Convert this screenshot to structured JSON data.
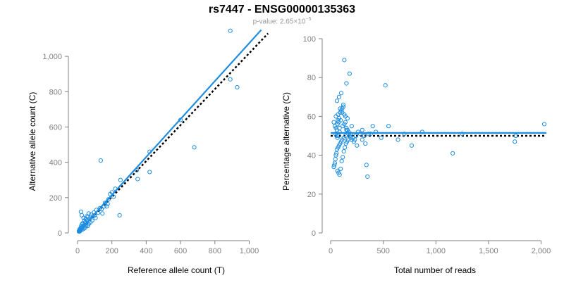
{
  "title": "rs7447 - ENSG00000135363",
  "subtitle": {
    "prefix": "p-value: 2.65×10",
    "exponent": "−5"
  },
  "colors": {
    "points": "#1f8de0",
    "fit": "#1f8de0",
    "reference": "#000000",
    "axis": "#808080"
  },
  "chart_data": [
    {
      "type": "scatter",
      "xlabel": "Reference allele count (T)",
      "ylabel": "Alternative allele count (C)",
      "xlim": [
        0,
        1150
      ],
      "ylim": [
        0,
        1100
      ],
      "xticks": [
        0,
        200,
        400,
        600,
        800,
        1000
      ],
      "xtick_labels": [
        "0",
        "200",
        "400",
        "600",
        "800",
        "1,000"
      ],
      "yticks": [
        0,
        200,
        400,
        600,
        800,
        1000
      ],
      "ytick_labels": [
        "0",
        "200",
        "400",
        "600",
        "800",
        "1,000"
      ],
      "fit_line": {
        "x": [
          0,
          1070
        ],
        "y": [
          0,
          1150
        ]
      },
      "reference_line": {
        "x": [
          0,
          1110
        ],
        "y": [
          0,
          1130
        ]
      },
      "points": [
        [
          890,
          1145
        ],
        [
          890,
          870
        ],
        [
          930,
          825
        ],
        [
          680,
          485
        ],
        [
          600,
          640
        ],
        [
          420,
          460
        ],
        [
          420,
          345
        ],
        [
          345,
          355
        ],
        [
          350,
          305
        ],
        [
          250,
          300
        ],
        [
          245,
          100
        ],
        [
          135,
          410
        ],
        [
          200,
          230
        ],
        [
          220,
          250
        ],
        [
          190,
          220
        ],
        [
          210,
          205
        ],
        [
          175,
          165
        ],
        [
          155,
          150
        ],
        [
          140,
          135
        ],
        [
          110,
          130
        ],
        [
          120,
          115
        ],
        [
          100,
          100
        ],
        [
          90,
          95
        ],
        [
          80,
          105
        ],
        [
          70,
          80
        ],
        [
          60,
          90
        ],
        [
          55,
          70
        ],
        [
          50,
          55
        ],
        [
          45,
          60
        ],
        [
          40,
          45
        ],
        [
          35,
          40
        ],
        [
          30,
          35
        ],
        [
          28,
          30
        ],
        [
          25,
          25
        ],
        [
          22,
          28
        ],
        [
          20,
          20
        ],
        [
          18,
          15
        ],
        [
          16,
          18
        ],
        [
          15,
          12
        ],
        [
          14,
          10
        ],
        [
          12,
          14
        ],
        [
          10,
          8
        ],
        [
          20,
          120
        ],
        [
          25,
          100
        ],
        [
          35,
          85
        ],
        [
          45,
          30
        ],
        [
          60,
          40
        ],
        [
          75,
          60
        ],
        [
          65,
          110
        ],
        [
          85,
          70
        ],
        [
          95,
          115
        ],
        [
          105,
          85
        ],
        [
          130,
          140
        ],
        [
          145,
          110
        ],
        [
          160,
          170
        ],
        [
          170,
          150
        ],
        [
          180,
          190
        ],
        [
          30,
          55
        ],
        [
          40,
          70
        ],
        [
          50,
          40
        ],
        [
          55,
          95
        ],
        [
          65,
          50
        ],
        [
          30,
          20
        ],
        [
          22,
          40
        ],
        [
          18,
          28
        ],
        [
          12,
          20
        ],
        [
          8,
          10
        ],
        [
          26,
          48
        ],
        [
          38,
          25
        ],
        [
          48,
          80
        ]
      ]
    },
    {
      "type": "scatter",
      "xlabel": "Total number of reads",
      "ylabel": "Percentage alternative (C)",
      "xlim": [
        0,
        2050
      ],
      "ylim": [
        0,
        100
      ],
      "xticks": [
        0,
        500,
        1000,
        1500,
        2000
      ],
      "xtick_labels": [
        "0",
        "500",
        "1,000",
        "1,500",
        "2,000"
      ],
      "yticks": [
        0,
        20,
        40,
        60,
        80,
        100
      ],
      "ytick_labels": [
        "0",
        "20",
        "40",
        "60",
        "80",
        "100"
      ],
      "fit_line": {
        "x": [
          0,
          2050
        ],
        "y": [
          51.5,
          51.5
        ]
      },
      "reference_line": {
        "x": [
          0,
          2050
        ],
        "y": [
          50,
          50
        ]
      },
      "points": [
        [
          130,
          89
        ],
        [
          180,
          82
        ],
        [
          520,
          76
        ],
        [
          150,
          77
        ],
        [
          100,
          72
        ],
        [
          80,
          70
        ],
        [
          60,
          68
        ],
        [
          120,
          66
        ],
        [
          90,
          64
        ],
        [
          110,
          62
        ],
        [
          70,
          61
        ],
        [
          140,
          60
        ],
        [
          50,
          60
        ],
        [
          160,
          59
        ],
        [
          95,
          58
        ],
        [
          75,
          57
        ],
        [
          130,
          56
        ],
        [
          65,
          56
        ],
        [
          200,
          55
        ],
        [
          115,
          55
        ],
        [
          85,
          54
        ],
        [
          400,
          55
        ],
        [
          550,
          55
        ],
        [
          700,
          51
        ],
        [
          870,
          52
        ],
        [
          1250,
          51
        ],
        [
          2030,
          56
        ],
        [
          1760,
          50
        ],
        [
          1750,
          47
        ],
        [
          1160,
          41
        ],
        [
          770,
          45
        ],
        [
          640,
          48
        ],
        [
          480,
          49
        ],
        [
          430,
          52
        ],
        [
          380,
          51
        ],
        [
          330,
          46
        ],
        [
          340,
          35
        ],
        [
          350,
          29
        ],
        [
          300,
          48
        ],
        [
          250,
          45
        ],
        [
          230,
          48
        ],
        [
          210,
          49
        ],
        [
          190,
          51
        ],
        [
          170,
          52
        ],
        [
          150,
          53
        ],
        [
          140,
          50
        ],
        [
          125,
          49
        ],
        [
          110,
          48
        ],
        [
          100,
          47
        ],
        [
          90,
          46
        ],
        [
          80,
          45
        ],
        [
          70,
          44
        ],
        [
          60,
          43
        ],
        [
          55,
          41
        ],
        [
          50,
          40
        ],
        [
          45,
          38
        ],
        [
          40,
          36
        ],
        [
          35,
          35
        ],
        [
          30,
          34
        ],
        [
          65,
          32
        ],
        [
          75,
          31
        ],
        [
          85,
          30
        ],
        [
          95,
          33
        ],
        [
          105,
          37
        ],
        [
          115,
          39
        ],
        [
          125,
          42
        ],
        [
          135,
          44
        ],
        [
          145,
          46
        ],
        [
          155,
          47
        ],
        [
          165,
          48
        ],
        [
          60,
          53
        ],
        [
          50,
          54
        ],
        [
          40,
          55
        ],
        [
          30,
          57
        ],
        [
          70,
          58
        ],
        [
          80,
          59
        ],
        [
          90,
          62
        ],
        [
          100,
          63
        ],
        [
          110,
          64
        ],
        [
          120,
          65
        ],
        [
          130,
          61
        ],
        [
          140,
          57
        ],
        [
          150,
          54
        ],
        [
          160,
          53
        ],
        [
          170,
          51
        ],
        [
          180,
          50
        ],
        [
          190,
          49
        ],
        [
          200,
          48
        ],
        [
          220,
          47
        ],
        [
          240,
          50
        ],
        [
          260,
          52
        ],
        [
          280,
          51
        ],
        [
          300,
          53
        ],
        [
          320,
          50
        ],
        [
          360,
          51
        ],
        [
          45,
          51
        ],
        [
          55,
          50
        ],
        [
          65,
          49
        ],
        [
          75,
          50
        ],
        [
          85,
          52
        ]
      ]
    }
  ]
}
